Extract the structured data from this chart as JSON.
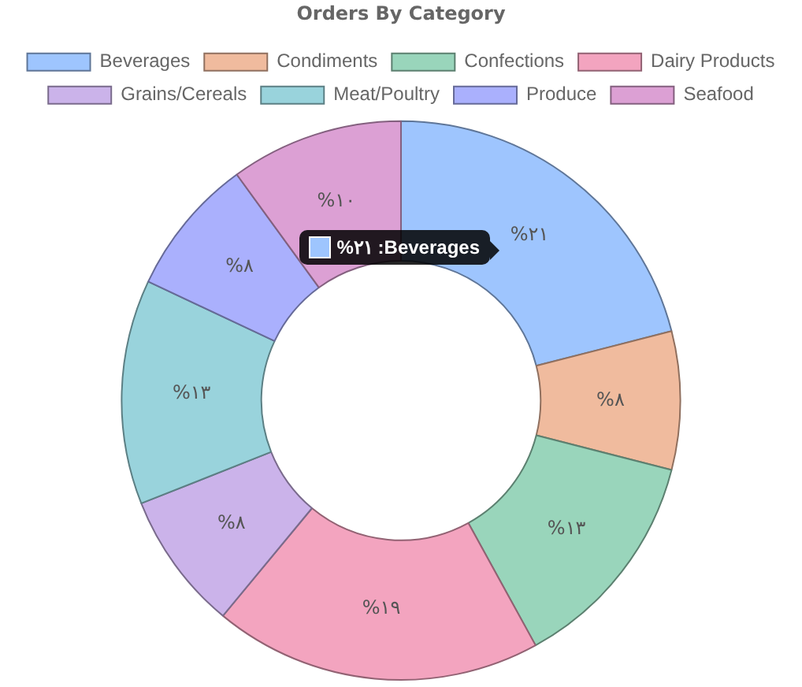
{
  "chart_data": {
    "type": "donut",
    "title": "Orders By Category",
    "categories": [
      "Beverages",
      "Condiments",
      "Confections",
      "Dairy Products",
      "Grains/Cereals",
      "Meat/Poultry",
      "Produce",
      "Seafood"
    ],
    "values": [
      21,
      8,
      13,
      19,
      8,
      13,
      8,
      10
    ],
    "value_labels": [
      "%۲۱",
      "%۸",
      "%۱۳",
      "%۱۹",
      "%۸",
      "%۱۳",
      "%۸",
      "%۱۰"
    ],
    "colors": [
      "#9ec5fe",
      "#f0bb9e",
      "#99d5bb",
      "#f3a4bf",
      "#cbb3ea",
      "#99d3dc",
      "#aab0fd",
      "#dca0d4"
    ],
    "legend": "top",
    "annotations": [
      "%۲۱ :Beverages"
    ]
  }
}
